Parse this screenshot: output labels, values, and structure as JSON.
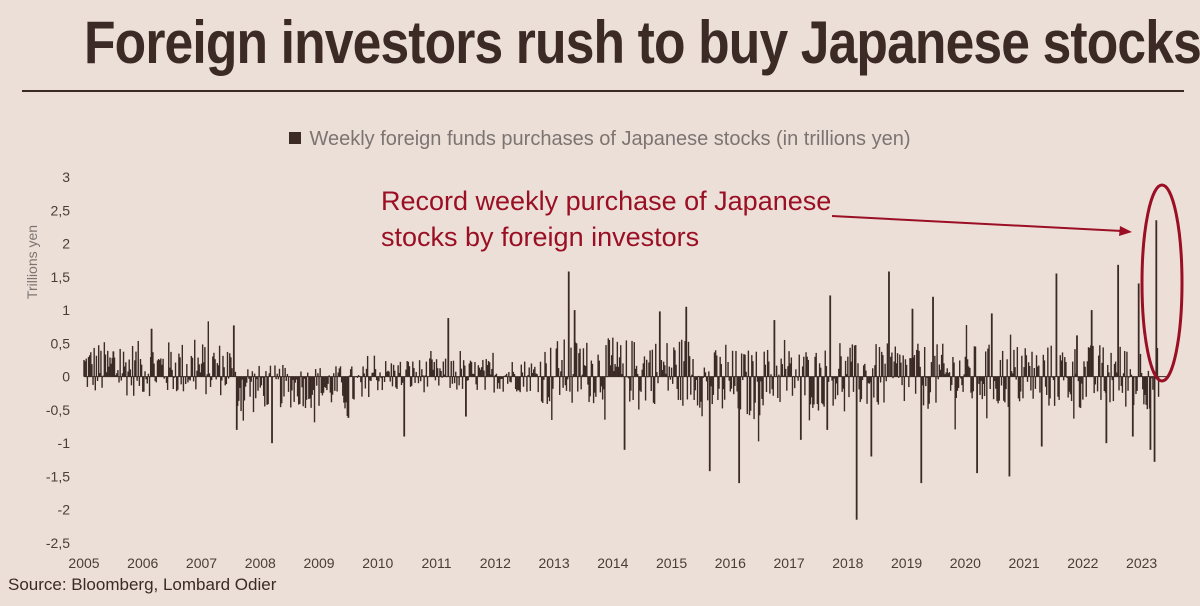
{
  "title": "Foreign investors rush to buy Japanese stocks",
  "source": "Source: Bloomberg, Lombard Odier",
  "colors": {
    "bar": "#3b2a26",
    "accent": "#9a0f23",
    "background": "#ecdfd8"
  },
  "chart_data": {
    "type": "bar",
    "legend": "Weekly foreign funds purchases of Japanese stocks (in trillions yen)",
    "legend_position": "top-center",
    "ylabel": "Trillions yen",
    "ylim": [
      -2.5,
      3
    ],
    "yticks": [
      -2.5,
      -2,
      -1.5,
      -1,
      -0.5,
      0,
      0.5,
      1,
      1.5,
      2,
      2.5,
      3
    ],
    "ytick_labels": [
      "-2,5",
      "-2",
      "-1,5",
      "-1",
      "-0,5",
      "0",
      "0,5",
      "1",
      "1,5",
      "2",
      "2,5",
      "3"
    ],
    "xlim": [
      2005.0,
      2023.5
    ],
    "xticks": [
      "2005",
      "2006",
      "2007",
      "2008",
      "2009",
      "2010",
      "2011",
      "2012",
      "2013",
      "2014",
      "2015",
      "2016",
      "2017",
      "2018",
      "2019",
      "2020",
      "2021",
      "2022",
      "2023"
    ],
    "grid": false,
    "annotation": {
      "text_lines": [
        "Record weekly purchase of Japanese",
        "stocks by foreign investors"
      ],
      "target": {
        "x": 2023.25,
        "y": 2.35
      }
    },
    "highlights": [
      {
        "x": 2005.5,
        "y": 0.38
      },
      {
        "x": 2006.15,
        "y": 0.72
      },
      {
        "x": 2007.55,
        "y": 0.77
      },
      {
        "x": 2007.6,
        "y": -0.8
      },
      {
        "x": 2008.2,
        "y": -1.0
      },
      {
        "x": 2009.5,
        "y": -0.62
      },
      {
        "x": 2010.45,
        "y": -0.9
      },
      {
        "x": 2011.2,
        "y": 0.88
      },
      {
        "x": 2011.5,
        "y": -0.6
      },
      {
        "x": 2013.25,
        "y": 1.58
      },
      {
        "x": 2013.35,
        "y": 1.0
      },
      {
        "x": 2014.2,
        "y": -1.1
      },
      {
        "x": 2014.8,
        "y": 0.98
      },
      {
        "x": 2015.25,
        "y": 1.05
      },
      {
        "x": 2015.65,
        "y": -1.42
      },
      {
        "x": 2016.15,
        "y": -1.6
      },
      {
        "x": 2016.75,
        "y": 0.85
      },
      {
        "x": 2017.2,
        "y": -0.95
      },
      {
        "x": 2017.65,
        "y": -0.8
      },
      {
        "x": 2017.7,
        "y": 1.22
      },
      {
        "x": 2018.15,
        "y": -2.15
      },
      {
        "x": 2018.4,
        "y": -1.2
      },
      {
        "x": 2018.7,
        "y": 1.58
      },
      {
        "x": 2019.1,
        "y": 1.02
      },
      {
        "x": 2019.25,
        "y": -1.6
      },
      {
        "x": 2019.45,
        "y": 1.2
      },
      {
        "x": 2020.2,
        "y": -1.45
      },
      {
        "x": 2020.45,
        "y": 0.95
      },
      {
        "x": 2020.75,
        "y": -1.5
      },
      {
        "x": 2021.3,
        "y": -1.05
      },
      {
        "x": 2021.55,
        "y": 1.55
      },
      {
        "x": 2021.9,
        "y": 0.62
      },
      {
        "x": 2022.15,
        "y": 1.0
      },
      {
        "x": 2022.4,
        "y": -1.0
      },
      {
        "x": 2022.6,
        "y": 1.68
      },
      {
        "x": 2022.85,
        "y": -0.9
      },
      {
        "x": 2022.95,
        "y": 1.4
      },
      {
        "x": 2023.15,
        "y": -1.1
      },
      {
        "x": 2023.22,
        "y": -1.28
      },
      {
        "x": 2023.25,
        "y": 2.35
      }
    ]
  }
}
